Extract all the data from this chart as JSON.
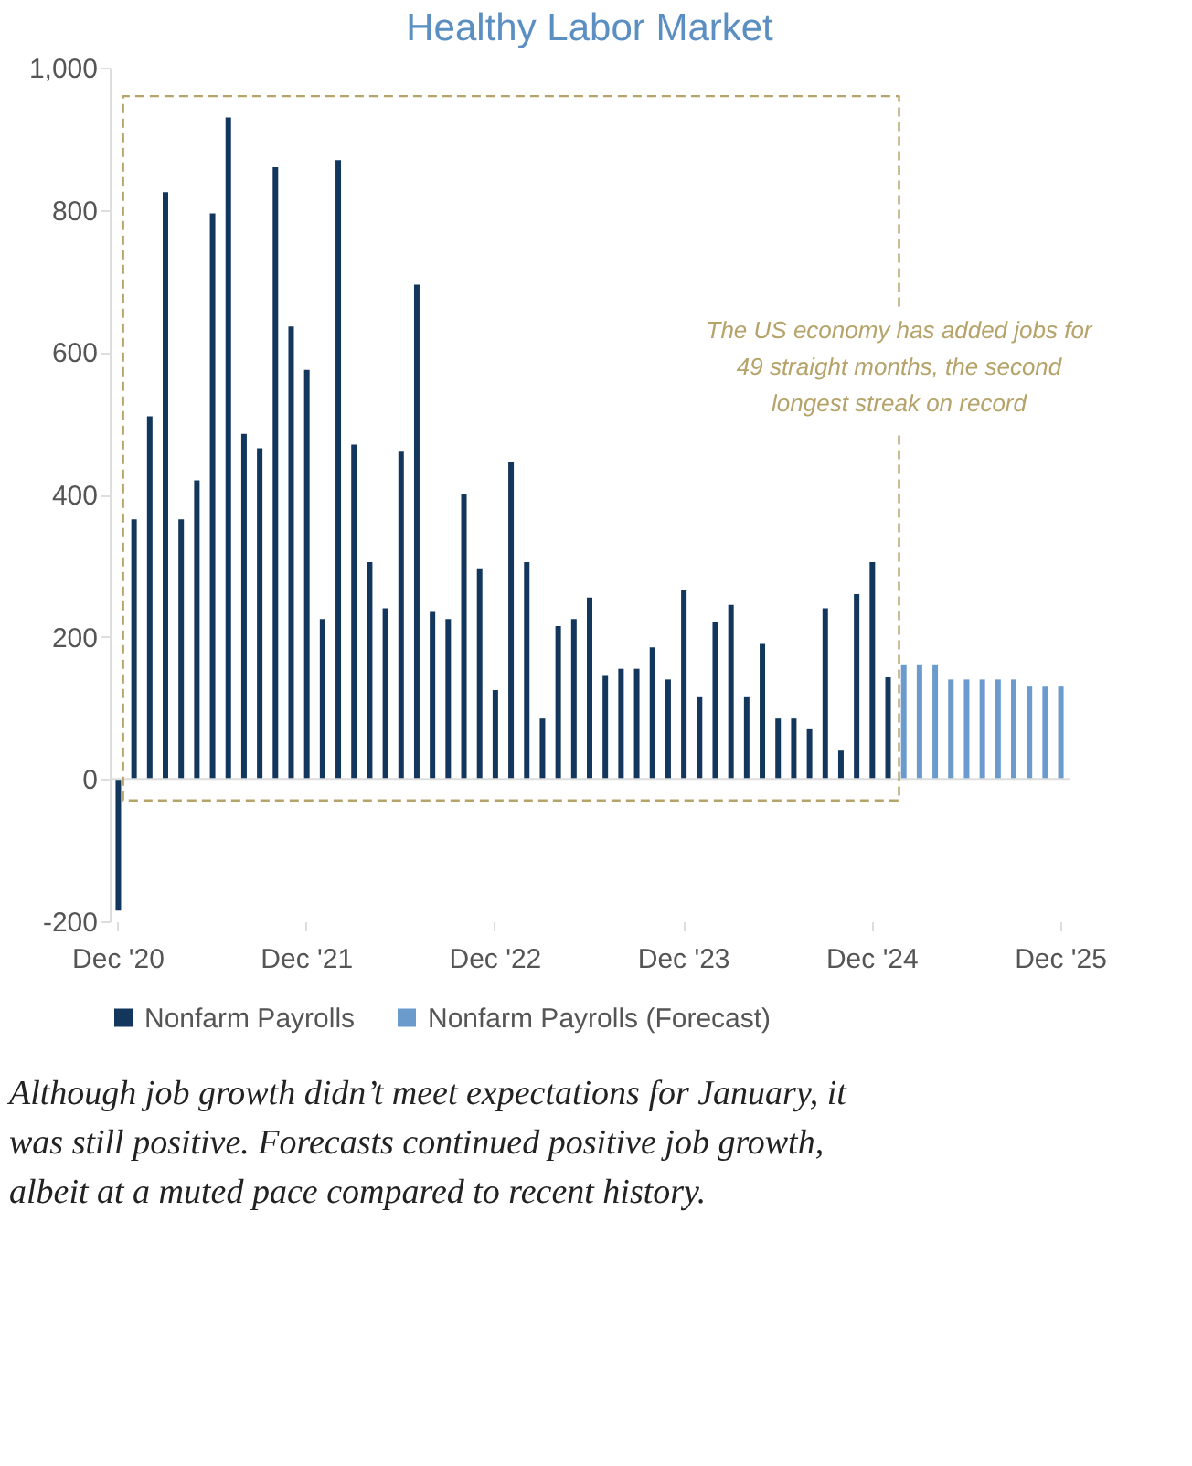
{
  "chart_data": {
    "type": "bar",
    "title": "Healthy Labor Market",
    "categories": [
      "Dec '20",
      null,
      null,
      null,
      null,
      null,
      null,
      null,
      null,
      null,
      null,
      null,
      "Dec '21",
      null,
      null,
      null,
      null,
      null,
      null,
      null,
      null,
      null,
      null,
      null,
      "Dec '22",
      null,
      null,
      null,
      null,
      null,
      null,
      null,
      null,
      null,
      null,
      null,
      "Dec '23",
      null,
      null,
      null,
      null,
      null,
      null,
      null,
      null,
      null,
      null,
      null,
      "Dec '24",
      null,
      null,
      null,
      null,
      null,
      null,
      null,
      null,
      null,
      null,
      null,
      "Dec '25"
    ],
    "series": [
      {
        "name": "Nonfarm Payrolls",
        "color": "#12365c",
        "values": [
          -185,
          365,
          510,
          825,
          365,
          420,
          795,
          930,
          485,
          465,
          860,
          636,
          575,
          225,
          870,
          470,
          305,
          240,
          460,
          695,
          235,
          225,
          400,
          295,
          125,
          445,
          305,
          85,
          215,
          225,
          255,
          145,
          155,
          155,
          185,
          140,
          265,
          115,
          220,
          245,
          115,
          190,
          85,
          85,
          70,
          240,
          40,
          260,
          305,
          143,
          null,
          null,
          null,
          null,
          null,
          null,
          null,
          null,
          null,
          null,
          null
        ]
      },
      {
        "name": "Nonfarm Payrolls (Forecast)",
        "color": "#6a9bcc",
        "values": [
          null,
          null,
          null,
          null,
          null,
          null,
          null,
          null,
          null,
          null,
          null,
          null,
          null,
          null,
          null,
          null,
          null,
          null,
          null,
          null,
          null,
          null,
          null,
          null,
          null,
          null,
          null,
          null,
          null,
          null,
          null,
          null,
          null,
          null,
          null,
          null,
          null,
          null,
          null,
          null,
          null,
          null,
          null,
          null,
          null,
          null,
          null,
          null,
          null,
          null,
          160,
          160,
          160,
          140,
          140,
          140,
          140,
          140,
          130,
          130,
          130
        ]
      }
    ],
    "ylim": [
      -200,
      1000
    ],
    "yticks": [
      -200,
      0,
      200,
      400,
      600,
      800,
      {
        "value": 1000,
        "label": "1,000"
      }
    ],
    "grid": false,
    "legend": "bottom",
    "ref_lines": [
      {
        "axis": "y",
        "value": 0,
        "color": "#dddddd"
      }
    ],
    "annotations": [
      "The US economy has added jobs for 49 straight months, the second longest streak on record",
      "Although job growth didn’t meet expectations for January, it was still positive. Forecasts continued positive job growth, albeit at a muted pace compared to recent history."
    ]
  }
}
